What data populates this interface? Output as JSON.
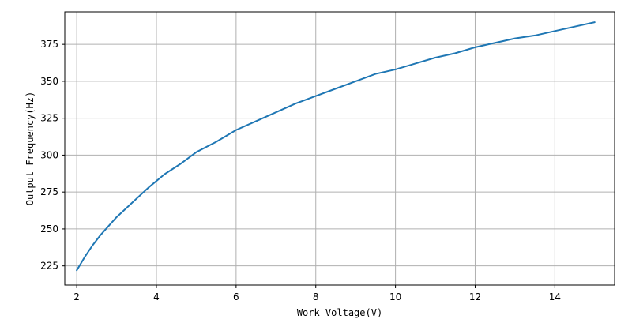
{
  "chart_data": {
    "type": "line",
    "title": "",
    "xlabel": "Work Voltage(V)",
    "ylabel": "Output Frequency(Hz)",
    "xlim": [
      1.7,
      15.5
    ],
    "ylim": [
      212,
      397
    ],
    "x_ticks": [
      2,
      4,
      6,
      8,
      10,
      12,
      14
    ],
    "y_ticks": [
      225,
      250,
      275,
      300,
      325,
      350,
      375
    ],
    "grid": true,
    "legend": "none",
    "series": [
      {
        "color": "#1f77b4",
        "x": [
          2.0,
          2.2,
          2.4,
          2.6,
          2.8,
          3.0,
          3.4,
          3.8,
          4.2,
          4.6,
          5.0,
          5.5,
          6.0,
          6.5,
          7.0,
          7.5,
          8.0,
          8.5,
          9.0,
          9.5,
          10.0,
          10.5,
          11.0,
          11.5,
          12.0,
          12.5,
          13.0,
          13.5,
          14.0,
          14.5,
          15.0
        ],
        "y": [
          222,
          231,
          239,
          246,
          252,
          258,
          268,
          278,
          287,
          294,
          302,
          309,
          317,
          323,
          329,
          335,
          340,
          345,
          350,
          355,
          358,
          362,
          366,
          369,
          373,
          376,
          379,
          381,
          384,
          387,
          390
        ]
      }
    ]
  }
}
